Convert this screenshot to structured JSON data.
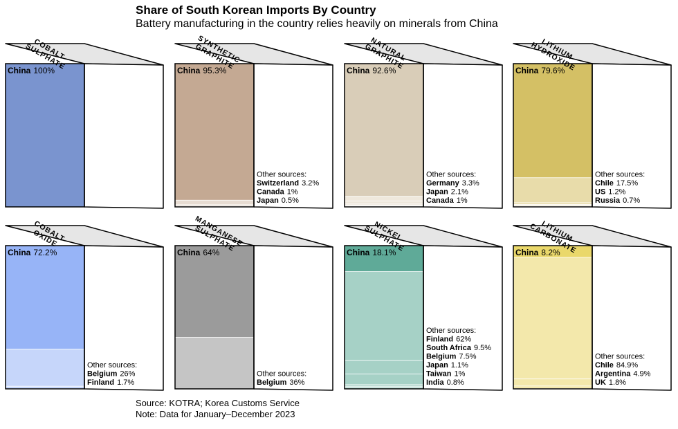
{
  "title": "Share of South Korean Imports By Country",
  "subtitle": "Battery manufacturing in the country relies heavily on minerals from China",
  "source": "Source: KOTRA; Korea Customs Service",
  "note": "Note: Data for January–December 2023",
  "other_sources_label": "Other sources:",
  "chart_data": [
    {
      "type": "bar",
      "title": [
        "COBALT",
        "SULPHATE"
      ],
      "color": "#7a94cf",
      "light_color": "#c7d2ee",
      "series": [
        {
          "name": "China",
          "value": 100,
          "label": "100%"
        }
      ]
    },
    {
      "type": "bar",
      "title": [
        "SYNTHETIC",
        "GRAPHITE"
      ],
      "color": "#c4a993",
      "light_color": "#e7dcd2",
      "series": [
        {
          "name": "China",
          "value": 95.3,
          "label": "95.3%"
        },
        {
          "name": "Switzerland",
          "value": 3.2,
          "label": "3.2%"
        },
        {
          "name": "Canada",
          "value": 1,
          "label": "1%"
        },
        {
          "name": "Japan",
          "value": 0.5,
          "label": "0.5%"
        }
      ]
    },
    {
      "type": "bar",
      "title": [
        "NATURAL",
        "GRAPHITE"
      ],
      "color": "#d9cdb8",
      "light_color": "#efe8dc",
      "series": [
        {
          "name": "China",
          "value": 92.6,
          "label": "92.6%"
        },
        {
          "name": "Germany",
          "value": 3.3,
          "label": "3.3%"
        },
        {
          "name": "Japan",
          "value": 2.1,
          "label": "2.1%"
        },
        {
          "name": "Canada",
          "value": 1,
          "label": "1%"
        }
      ]
    },
    {
      "type": "bar",
      "title": [
        "LITHIUM",
        "HYDROXIDE"
      ],
      "color": "#d4c065",
      "light_color": "#e8dcaa",
      "series": [
        {
          "name": "China",
          "value": 79.6,
          "label": "79.6%"
        },
        {
          "name": "Chile",
          "value": 17.5,
          "label": "17.5%"
        },
        {
          "name": "US",
          "value": 1.2,
          "label": "1.2%"
        },
        {
          "name": "Russia",
          "value": 0.7,
          "label": "0.7%"
        }
      ]
    },
    {
      "type": "bar",
      "title": [
        "COBALT",
        "OXIDE"
      ],
      "color": "#97b4f7",
      "light_color": "#c6d6fa",
      "series": [
        {
          "name": "China",
          "value": 72.2,
          "label": "72.2%"
        },
        {
          "name": "Belgium",
          "value": 26,
          "label": "26%"
        },
        {
          "name": "Finland",
          "value": 1.7,
          "label": "1.7%"
        }
      ]
    },
    {
      "type": "bar",
      "title": [
        "MANGANESE",
        "SULPHATE"
      ],
      "color": "#9b9b9b",
      "light_color": "#c5c5c5",
      "series": [
        {
          "name": "China",
          "value": 64,
          "label": "64%"
        },
        {
          "name": "Belgium",
          "value": 36,
          "label": "36%"
        }
      ]
    },
    {
      "type": "bar",
      "title": [
        "NICKEL",
        "SULPHATE"
      ],
      "color": "#5faa98",
      "light_color": "#a6d1c6",
      "series": [
        {
          "name": "China",
          "value": 18.1,
          "label": "18.1%"
        },
        {
          "name": "Finland",
          "value": 62,
          "label": "62%"
        },
        {
          "name": "South Africa",
          "value": 9.5,
          "label": "9.5%"
        },
        {
          "name": "Belgium",
          "value": 7.5,
          "label": "7.5%"
        },
        {
          "name": "Japan",
          "value": 1.1,
          "label": "1.1%"
        },
        {
          "name": "Taiwan",
          "value": 1,
          "label": "1%"
        },
        {
          "name": "India",
          "value": 0.8,
          "label": "0.8%"
        }
      ]
    },
    {
      "type": "bar",
      "title": [
        "LITHIUM",
        "CARBONATE"
      ],
      "color": "#ead86b",
      "light_color": "#f3e8ab",
      "series": [
        {
          "name": "China",
          "value": 8.2,
          "label": "8.2%"
        },
        {
          "name": "Chile",
          "value": 84.9,
          "label": "84.9%"
        },
        {
          "name": "Argentina",
          "value": 4.9,
          "label": "4.9%"
        },
        {
          "name": "UK",
          "value": 1.8,
          "label": "1.8%"
        }
      ]
    }
  ]
}
